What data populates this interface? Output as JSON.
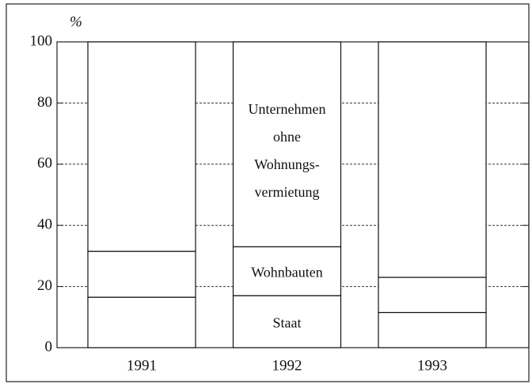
{
  "chart_data": {
    "type": "stacked_bar",
    "y_unit": "%",
    "categories": [
      "1991",
      "1992",
      "1993"
    ],
    "series": [
      {
        "name": "Staat",
        "color": "#ffffff",
        "values": [
          16.5,
          17,
          11.5
        ]
      },
      {
        "name": "Wohnbauten",
        "color": "#ffffff",
        "values": [
          15,
          16,
          11.5
        ]
      },
      {
        "name": "Unternehmen\nohne\nWohnungs-\nvermietung",
        "color": "#ffffff",
        "values": [
          68.5,
          67,
          77
        ]
      }
    ],
    "label_category": 1,
    "ylim": [
      0,
      100
    ],
    "yticks": [
      0,
      20,
      40,
      60,
      80,
      100
    ],
    "grid": true
  }
}
